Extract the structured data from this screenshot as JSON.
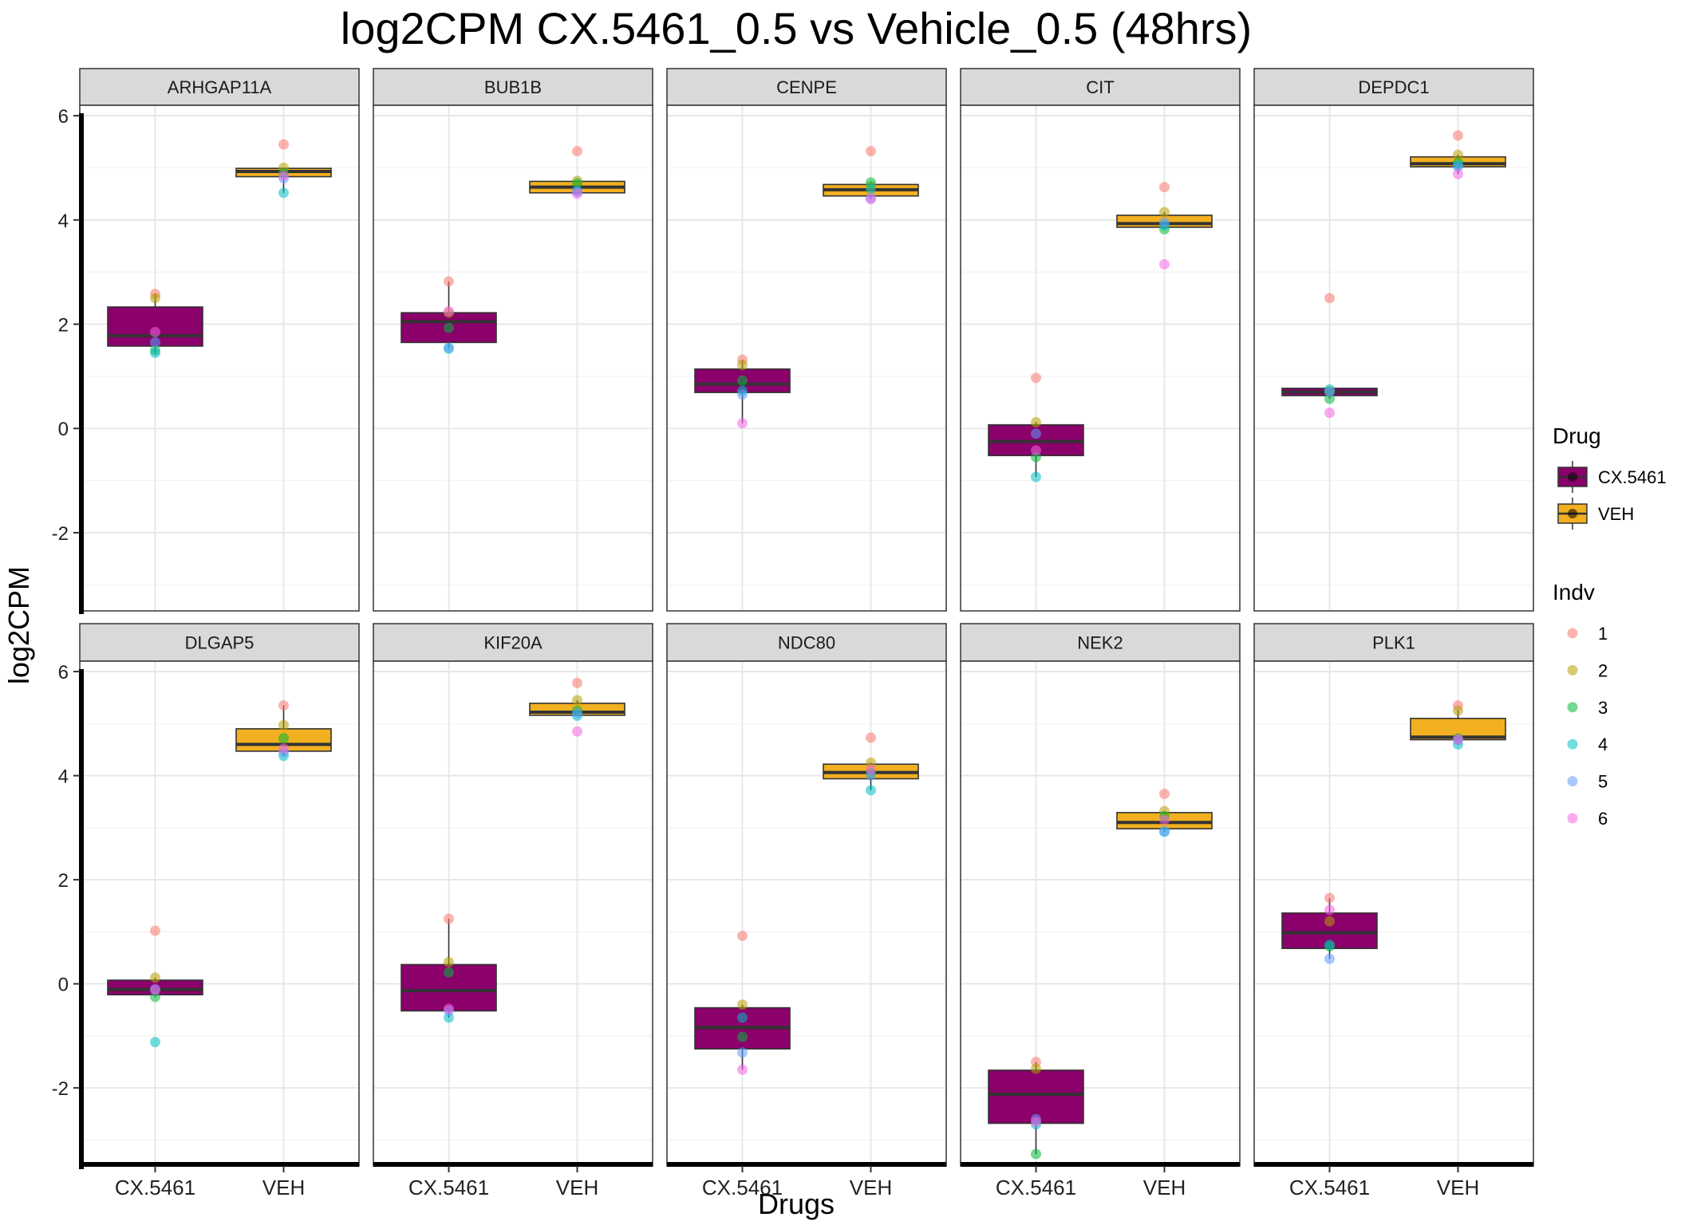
{
  "chart_data": {
    "type": "box",
    "title": "log2CPM CX.5461_0.5 vs Vehicle_0.5 (48hrs)",
    "xlabel": "Drugs",
    "ylabel": "log2CPM",
    "ylim": [
      -3.5,
      6.2
    ],
    "yticks": [
      -2,
      0,
      2,
      4,
      6
    ],
    "categories": [
      "CX.5461",
      "VEH"
    ],
    "facet_layout": {
      "rows": 2,
      "cols": 5
    },
    "legend_placement": "right",
    "grid": true,
    "legends": {
      "drug": {
        "title": "Drug",
        "items": [
          {
            "label": "CX.5461",
            "color": "#8B006B"
          },
          {
            "label": "VEH",
            "color": "#F2B020"
          }
        ]
      },
      "indv": {
        "title": "Indv",
        "items": [
          {
            "label": "1",
            "color": "#F8766D"
          },
          {
            "label": "2",
            "color": "#B79F00"
          },
          {
            "label": "3",
            "color": "#00BA38"
          },
          {
            "label": "4",
            "color": "#00BFC4"
          },
          {
            "label": "5",
            "color": "#619CFF"
          },
          {
            "label": "6",
            "color": "#F564E3"
          }
        ]
      }
    },
    "panels": [
      {
        "gene": "ARHGAP11A",
        "groups": [
          {
            "drug": "CX.5461",
            "points": [
              2.58,
              2.5,
              1.5,
              1.45,
              1.65,
              1.85
            ],
            "box": {
              "whisker_low": 1.45,
              "q1": 1.58,
              "median": 1.78,
              "q3": 2.33,
              "whisker_high": 2.58
            }
          },
          {
            "drug": "VEH",
            "points": [
              5.45,
              5.0,
              4.9,
              4.52,
              4.8,
              4.85
            ],
            "box": {
              "whisker_low": 4.52,
              "q1": 4.83,
              "median": 4.93,
              "q3": 4.99,
              "whisker_high": 5.0
            }
          }
        ]
      },
      {
        "gene": "BUB1B",
        "groups": [
          {
            "drug": "CX.5461",
            "points": [
              2.82,
              2.22,
              1.93,
              1.53,
              1.55,
              2.25
            ],
            "box": {
              "whisker_low": 1.53,
              "q1": 1.65,
              "median": 2.05,
              "q3": 2.22,
              "whisker_high": 2.82
            }
          },
          {
            "drug": "VEH",
            "points": [
              5.32,
              4.75,
              4.7,
              4.55,
              4.55,
              4.5
            ],
            "box": {
              "whisker_low": 4.5,
              "q1": 4.52,
              "median": 4.63,
              "q3": 4.74,
              "whisker_high": 4.75
            }
          }
        ]
      },
      {
        "gene": "CENPE",
        "groups": [
          {
            "drug": "CX.5461",
            "points": [
              1.32,
              1.22,
              0.92,
              0.72,
              0.65,
              0.1
            ],
            "box": {
              "whisker_low": 0.1,
              "q1": 0.69,
              "median": 0.85,
              "q3": 1.14,
              "whisker_high": 1.32
            }
          },
          {
            "drug": "VEH",
            "points": [
              5.32,
              4.65,
              4.72,
              4.6,
              4.42,
              4.4
            ],
            "box": {
              "whisker_low": 4.4,
              "q1": 4.46,
              "median": 4.58,
              "q3": 4.68,
              "whisker_high": 4.72
            }
          }
        ]
      },
      {
        "gene": "CIT",
        "groups": [
          {
            "drug": "CX.5461",
            "points": [
              0.97,
              0.12,
              -0.55,
              -0.93,
              -0.1,
              -0.42
            ],
            "box": {
              "whisker_low": -0.93,
              "q1": -0.52,
              "median": -0.25,
              "q3": 0.07,
              "whisker_high": 0.12
            }
          },
          {
            "drug": "VEH",
            "points": [
              4.63,
              4.15,
              3.82,
              3.9,
              3.95,
              3.15
            ],
            "box": {
              "whisker_low": 3.82,
              "q1": 3.86,
              "median": 3.93,
              "q3": 4.09,
              "whisker_high": 4.15
            }
          }
        ]
      },
      {
        "gene": "DEPDC1",
        "groups": [
          {
            "drug": "CX.5461",
            "points": [
              2.5,
              0.72,
              0.57,
              0.75,
              0.7,
              0.3
            ],
            "box": {
              "whisker_low": 0.57,
              "q1": 0.63,
              "median": 0.7,
              "q3": 0.77,
              "whisker_high": 0.77
            }
          },
          {
            "drug": "VEH",
            "points": [
              5.62,
              5.25,
              5.1,
              5.05,
              5.02,
              4.88
            ],
            "box": {
              "whisker_low": 4.88,
              "q1": 5.02,
              "median": 5.08,
              "q3": 5.21,
              "whisker_high": 5.25
            }
          }
        ]
      },
      {
        "gene": "DLGAP5",
        "groups": [
          {
            "drug": "CX.5461",
            "points": [
              1.02,
              0.12,
              -0.25,
              -1.12,
              -0.1,
              -0.12
            ],
            "box": {
              "whisker_low": -0.25,
              "q1": -0.21,
              "median": -0.11,
              "q3": 0.07,
              "whisker_high": 0.12
            }
          },
          {
            "drug": "VEH",
            "points": [
              5.35,
              4.97,
              4.72,
              4.38,
              4.45,
              4.52
            ],
            "box": {
              "whisker_low": 4.38,
              "q1": 4.47,
              "median": 4.6,
              "q3": 4.9,
              "whisker_high": 5.35
            }
          }
        ]
      },
      {
        "gene": "KIF20A",
        "groups": [
          {
            "drug": "CX.5461",
            "points": [
              1.25,
              0.42,
              0.22,
              -0.65,
              -0.52,
              -0.48
            ],
            "box": {
              "whisker_low": -0.65,
              "q1": -0.52,
              "median": -0.13,
              "q3": 0.37,
              "whisker_high": 1.25
            }
          },
          {
            "drug": "VEH",
            "points": [
              5.78,
              5.45,
              5.25,
              5.15,
              5.2,
              4.85
            ],
            "box": {
              "whisker_low": 5.15,
              "q1": 5.16,
              "median": 5.22,
              "q3": 5.39,
              "whisker_high": 5.45
            }
          }
        ]
      },
      {
        "gene": "NDC80",
        "groups": [
          {
            "drug": "CX.5461",
            "points": [
              0.92,
              -0.4,
              -1.02,
              -0.65,
              -1.32,
              -1.65
            ],
            "box": {
              "whisker_low": -1.65,
              "q1": -1.25,
              "median": -0.84,
              "q3": -0.46,
              "whisker_high": -0.4
            }
          },
          {
            "drug": "VEH",
            "points": [
              4.73,
              4.25,
              4.05,
              3.72,
              4.0,
              4.12
            ],
            "box": {
              "whisker_low": 3.72,
              "q1": 3.94,
              "median": 4.06,
              "q3": 4.22,
              "whisker_high": 4.25
            }
          }
        ]
      },
      {
        "gene": "NEK2",
        "groups": [
          {
            "drug": "CX.5461",
            "points": [
              -1.5,
              -1.63,
              -3.27,
              -2.7,
              -2.6,
              -2.65
            ],
            "box": {
              "whisker_low": -3.27,
              "q1": -2.68,
              "median": -2.12,
              "q3": -1.66,
              "whisker_high": -1.5
            }
          },
          {
            "drug": "VEH",
            "points": [
              3.65,
              3.32,
              3.22,
              2.92,
              2.93,
              3.15
            ],
            "box": {
              "whisker_low": 2.92,
              "q1": 2.98,
              "median": 3.1,
              "q3": 3.29,
              "whisker_high": 3.32
            }
          }
        ]
      },
      {
        "gene": "PLK1",
        "groups": [
          {
            "drug": "CX.5461",
            "points": [
              1.65,
              1.2,
              0.72,
              0.75,
              0.48,
              1.42
            ],
            "box": {
              "whisker_low": 0.48,
              "q1": 0.68,
              "median": 0.98,
              "q3": 1.36,
              "whisker_high": 1.65
            }
          },
          {
            "drug": "VEH",
            "points": [
              5.35,
              5.25,
              4.72,
              4.6,
              4.68,
              4.7
            ],
            "box": {
              "whisker_low": 4.6,
              "q1": 4.69,
              "median": 4.74,
              "q3": 5.1,
              "whisker_high": 5.25
            }
          }
        ]
      }
    ]
  }
}
